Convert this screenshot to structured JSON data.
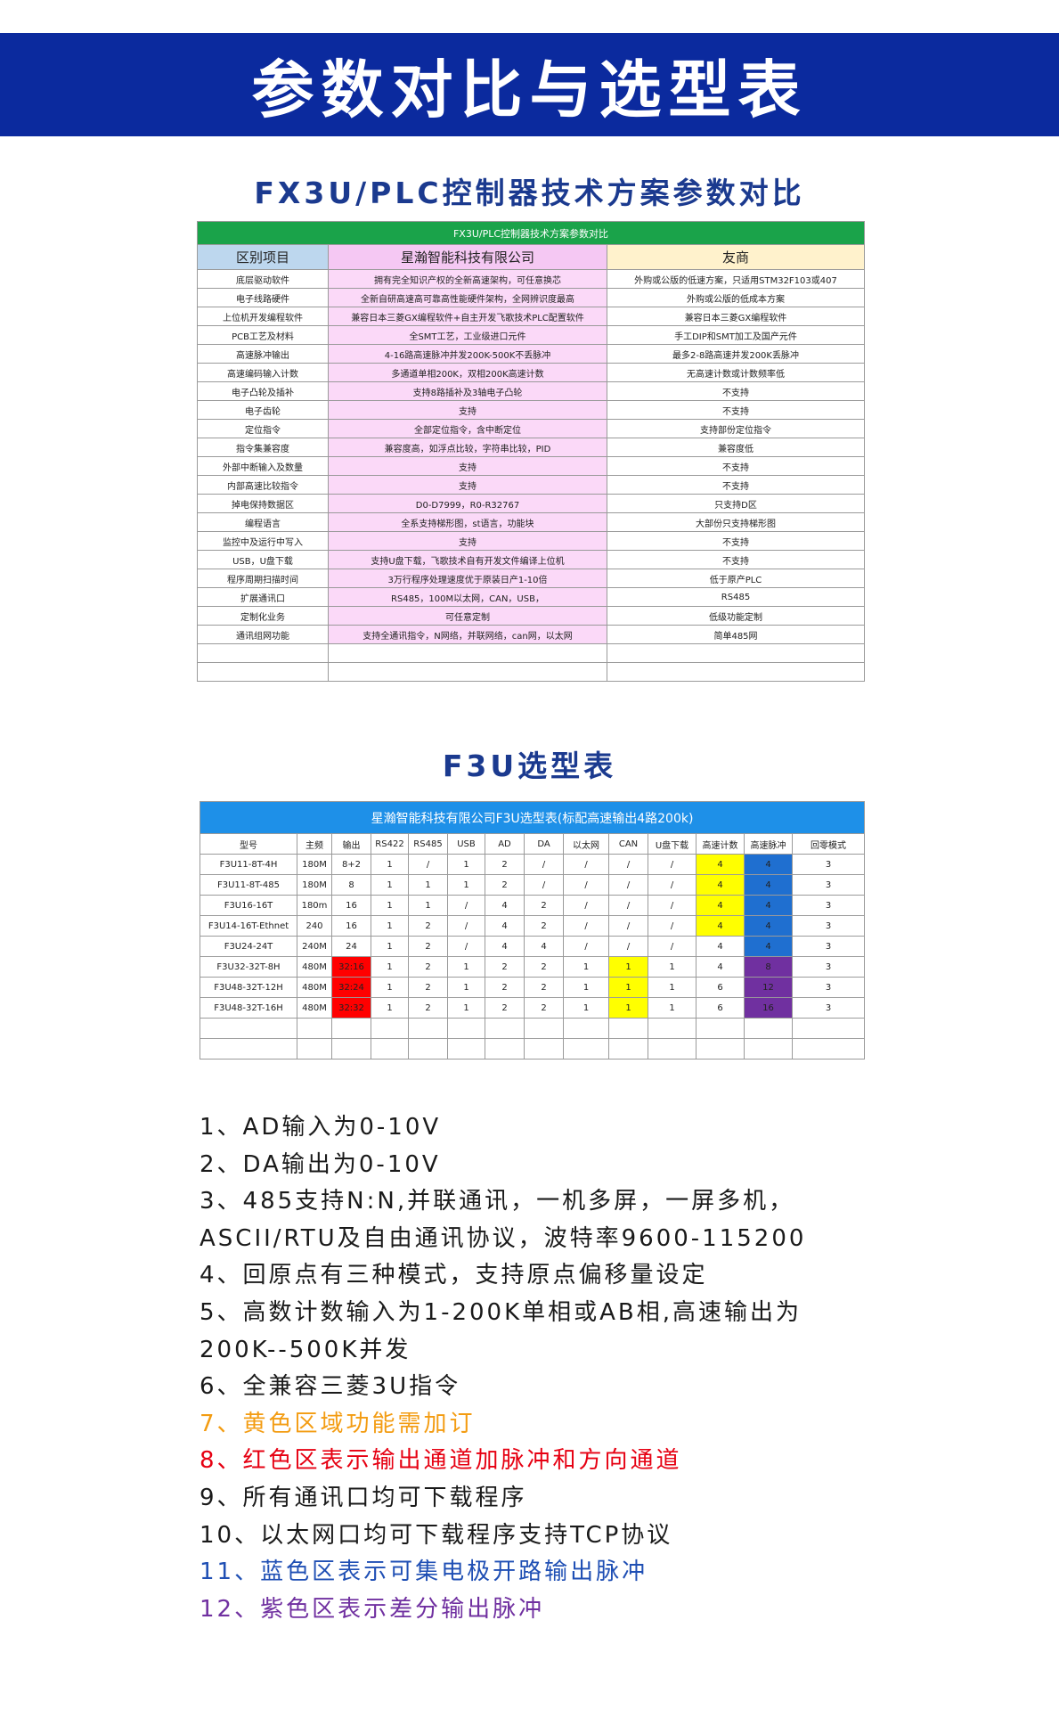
{
  "header": {
    "title": "参数对比与选型表"
  },
  "section1": {
    "title": "FX3U/PLC控制器技术方案参数对比"
  },
  "table1": {
    "title": "FX3U/PLC控制器技术方案参数对比",
    "headers": [
      "区别项目",
      "星瀚智能科技有限公司",
      "友商"
    ],
    "rows": [
      [
        "底层驱动软件",
        "拥有完全知识产权的全新高速架构，可任意换芯",
        "外购或公版的低速方案，只适用STM32F103或407"
      ],
      [
        "电子线路硬件",
        "全新自研高速高可靠高性能硬件架构，全网辨识度最高",
        "外购或公版的低成本方案"
      ],
      [
        "上位机开发编程软件",
        "兼容日本三菱GX编程软件+自主开发飞歌技术PLC配置软件",
        "兼容日本三菱GX编程软件"
      ],
      [
        "PCB工艺及材料",
        "全SMT工艺，工业级进口元件",
        "手工DIP和SMT加工及国产元件"
      ],
      [
        "高速脉冲输出",
        "4-16路高速脉冲并发200K-500K不丢脉冲",
        "最多2-8路高速并发200K丢脉冲"
      ],
      [
        "高速编码输入计数",
        "多通道单相200K，双相200K高速计数",
        "无高速计数或计数频率低"
      ],
      [
        "电子凸轮及插补",
        "支持8路插补及3轴电子凸轮",
        "不支持"
      ],
      [
        "电子齿轮",
        "支持",
        "不支持"
      ],
      [
        "定位指令",
        "全部定位指令，含中断定位",
        "支持部份定位指令"
      ],
      [
        "指令集兼容度",
        "兼容度高，如浮点比较，字符串比较，PID",
        "兼容度低"
      ],
      [
        "外部中断输入及数量",
        "支持",
        "不支持"
      ],
      [
        "内部高速比较指令",
        "支持",
        "不支持"
      ],
      [
        "掉电保持数据区",
        "D0-D7999，R0-R32767",
        "只支持D区"
      ],
      [
        "编程语言",
        "全系支持梯形图，st语言，功能块",
        "大部份只支持梯形图"
      ],
      [
        "监控中及运行中写入",
        "支持",
        "不支持"
      ],
      [
        "USB，U盘下载",
        "支持U盘下载，飞歌技术自有开发文件编译上位机",
        "不支持"
      ],
      [
        "程序周期扫描时间",
        "3万行程序处理速度优于原装日产1-10倍",
        "低于原产PLC"
      ],
      [
        "扩展通讯口",
        "RS485，100M以太网，CAN，USB，",
        "RS485"
      ],
      [
        "定制化业务",
        "可任意定制",
        "低级功能定制"
      ],
      [
        "通讯组网功能",
        "支持全通讯指令，N网络，并联网络，can网，以太网",
        "简单485网"
      ]
    ]
  },
  "section2": {
    "title": "F3U选型表"
  },
  "table2": {
    "title": "星瀚智能科技有限公司F3U选型表(标配高速输出4路200k)",
    "headers": [
      "型号",
      "主频",
      "输出",
      "RS422",
      "RS485",
      "USB",
      "AD",
      "DA",
      "以太网",
      "CAN",
      "U盘下载",
      "高速计数",
      "高速脉冲",
      "回零模式"
    ],
    "rows": [
      [
        "F3U11-8T-4H",
        "180M",
        "8+2",
        "1",
        "/",
        "1",
        "2",
        "/",
        "/",
        "/",
        "/",
        "4",
        "4",
        "3"
      ],
      [
        "F3U11-8T-485",
        "180M",
        "8",
        "1",
        "1",
        "1",
        "2",
        "/",
        "/",
        "/",
        "/",
        "4",
        "4",
        "3"
      ],
      [
        "F3U16-16T",
        "180m",
        "16",
        "1",
        "1",
        "/",
        "4",
        "2",
        "/",
        "/",
        "/",
        "4",
        "4",
        "3"
      ],
      [
        "F3U14-16T-Ethnet",
        "240",
        "16",
        "1",
        "2",
        "/",
        "4",
        "2",
        "/",
        "/",
        "/",
        "4",
        "4",
        "3"
      ],
      [
        "F3U24-24T",
        "240M",
        "24",
        "1",
        "2",
        "/",
        "4",
        "4",
        "/",
        "/",
        "/",
        "4",
        "4",
        "3"
      ],
      [
        "F3U32-32T-8H",
        "480M",
        "32:16",
        "1",
        "2",
        "1",
        "2",
        "2",
        "1",
        "1",
        "1",
        "4",
        "8",
        "3"
      ],
      [
        "F3U48-32T-12H",
        "480M",
        "32:24",
        "1",
        "2",
        "1",
        "2",
        "2",
        "1",
        "1",
        "1",
        "6",
        "12",
        "3"
      ],
      [
        "F3U48-32T-16H",
        "480M",
        "32:32",
        "1",
        "2",
        "1",
        "2",
        "2",
        "1",
        "1",
        "1",
        "6",
        "16",
        "3"
      ]
    ]
  },
  "notes": [
    "1、AD输入为0-10V",
    "2、DA输出为0-10V",
    "3、485支持N:N,并联通讯，一机多屏，一屏多机，ASCII/RTU及自由通讯协议，波特率9600-115200",
    "4、回原点有三种模式，支持原点偏移量设定",
    "5、高数计数输入为1-200K单相或AB相,高速输出为200K--500K并发",
    "6、全兼容三菱3U指令",
    "7、黄色区域功能需加订",
    "8、红色区表示输出通道加脉冲和方向通道",
    "9、所有通讯口均可下载程序",
    "10、以太网口均可下载程序支持TCP协议",
    "11、蓝色区表示可集电极开路输出脉冲",
    "12、紫色区表示差分输出脉冲"
  ]
}
